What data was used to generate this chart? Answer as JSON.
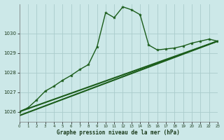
{
  "title": "Graphe pression niveau de la mer (hPa)",
  "background_color": "#cce8e8",
  "grid_color": "#aacccc",
  "line_color_main": "#1a5c1a",
  "xlim": [
    0,
    23
  ],
  "ylim": [
    1025.5,
    1031.5
  ],
  "yticks": [
    1026,
    1027,
    1028,
    1029,
    1030
  ],
  "xticks": [
    0,
    1,
    2,
    3,
    4,
    5,
    6,
    7,
    8,
    9,
    10,
    11,
    12,
    13,
    14,
    15,
    16,
    17,
    18,
    19,
    20,
    21,
    22,
    23
  ],
  "series1_x": [
    0,
    1,
    2,
    3,
    4,
    5,
    6,
    7,
    8,
    9,
    10,
    11,
    12,
    13,
    14,
    15,
    16,
    17,
    18,
    19,
    20,
    21,
    22,
    23
  ],
  "series1_y": [
    1026.0,
    1026.2,
    1026.6,
    1027.05,
    1027.3,
    1027.6,
    1027.85,
    1028.15,
    1028.4,
    1029.3,
    1031.05,
    1030.8,
    1031.35,
    1031.2,
    1030.95,
    1029.4,
    1029.15,
    1029.2,
    1029.25,
    1029.35,
    1029.5,
    1029.6,
    1029.7,
    1029.6
  ],
  "series2_x": [
    0,
    23
  ],
  "series2_y": [
    1026.0,
    1029.6
  ],
  "series3_x": [
    0,
    23
  ],
  "series3_y": [
    1025.8,
    1029.6
  ]
}
